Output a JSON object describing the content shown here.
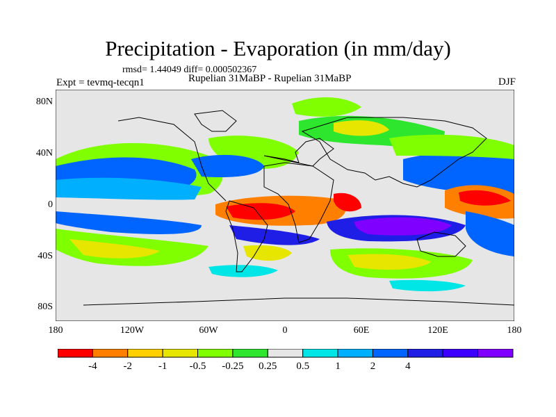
{
  "title": "Precipitation - Evaporation (in mm/day)",
  "stats": "rmsd= 1.44049 diff= 0.000502367",
  "experiment": "Expt = tevmq-tecqn1",
  "comparison": "Rupelian  31MaBP - Rupelian  31MaBP",
  "season": "DJF",
  "axes": {
    "lat_ticks": [
      "80N",
      "40N",
      "0",
      "40S",
      "80S"
    ],
    "lon_ticks": [
      "180",
      "120W",
      "60W",
      "0",
      "60E",
      "120E",
      "180"
    ]
  },
  "colorbar": {
    "colors": [
      "#ff0000",
      "#ff8000",
      "#ffd000",
      "#e6e600",
      "#80ff00",
      "#2ee62e",
      "#e6e6e6",
      "#00e6e6",
      "#00b0ff",
      "#0064ff",
      "#1e1ee6",
      "#3c00ff",
      "#8000ff"
    ],
    "labels": [
      "-4",
      "-2",
      "-1",
      "-0.5",
      "-0.25",
      "0.25",
      "0.5",
      "1",
      "2",
      "4"
    ],
    "label_positions_after_box": [
      1,
      2,
      3,
      4,
      5,
      6,
      7,
      8,
      9,
      10
    ]
  }
}
